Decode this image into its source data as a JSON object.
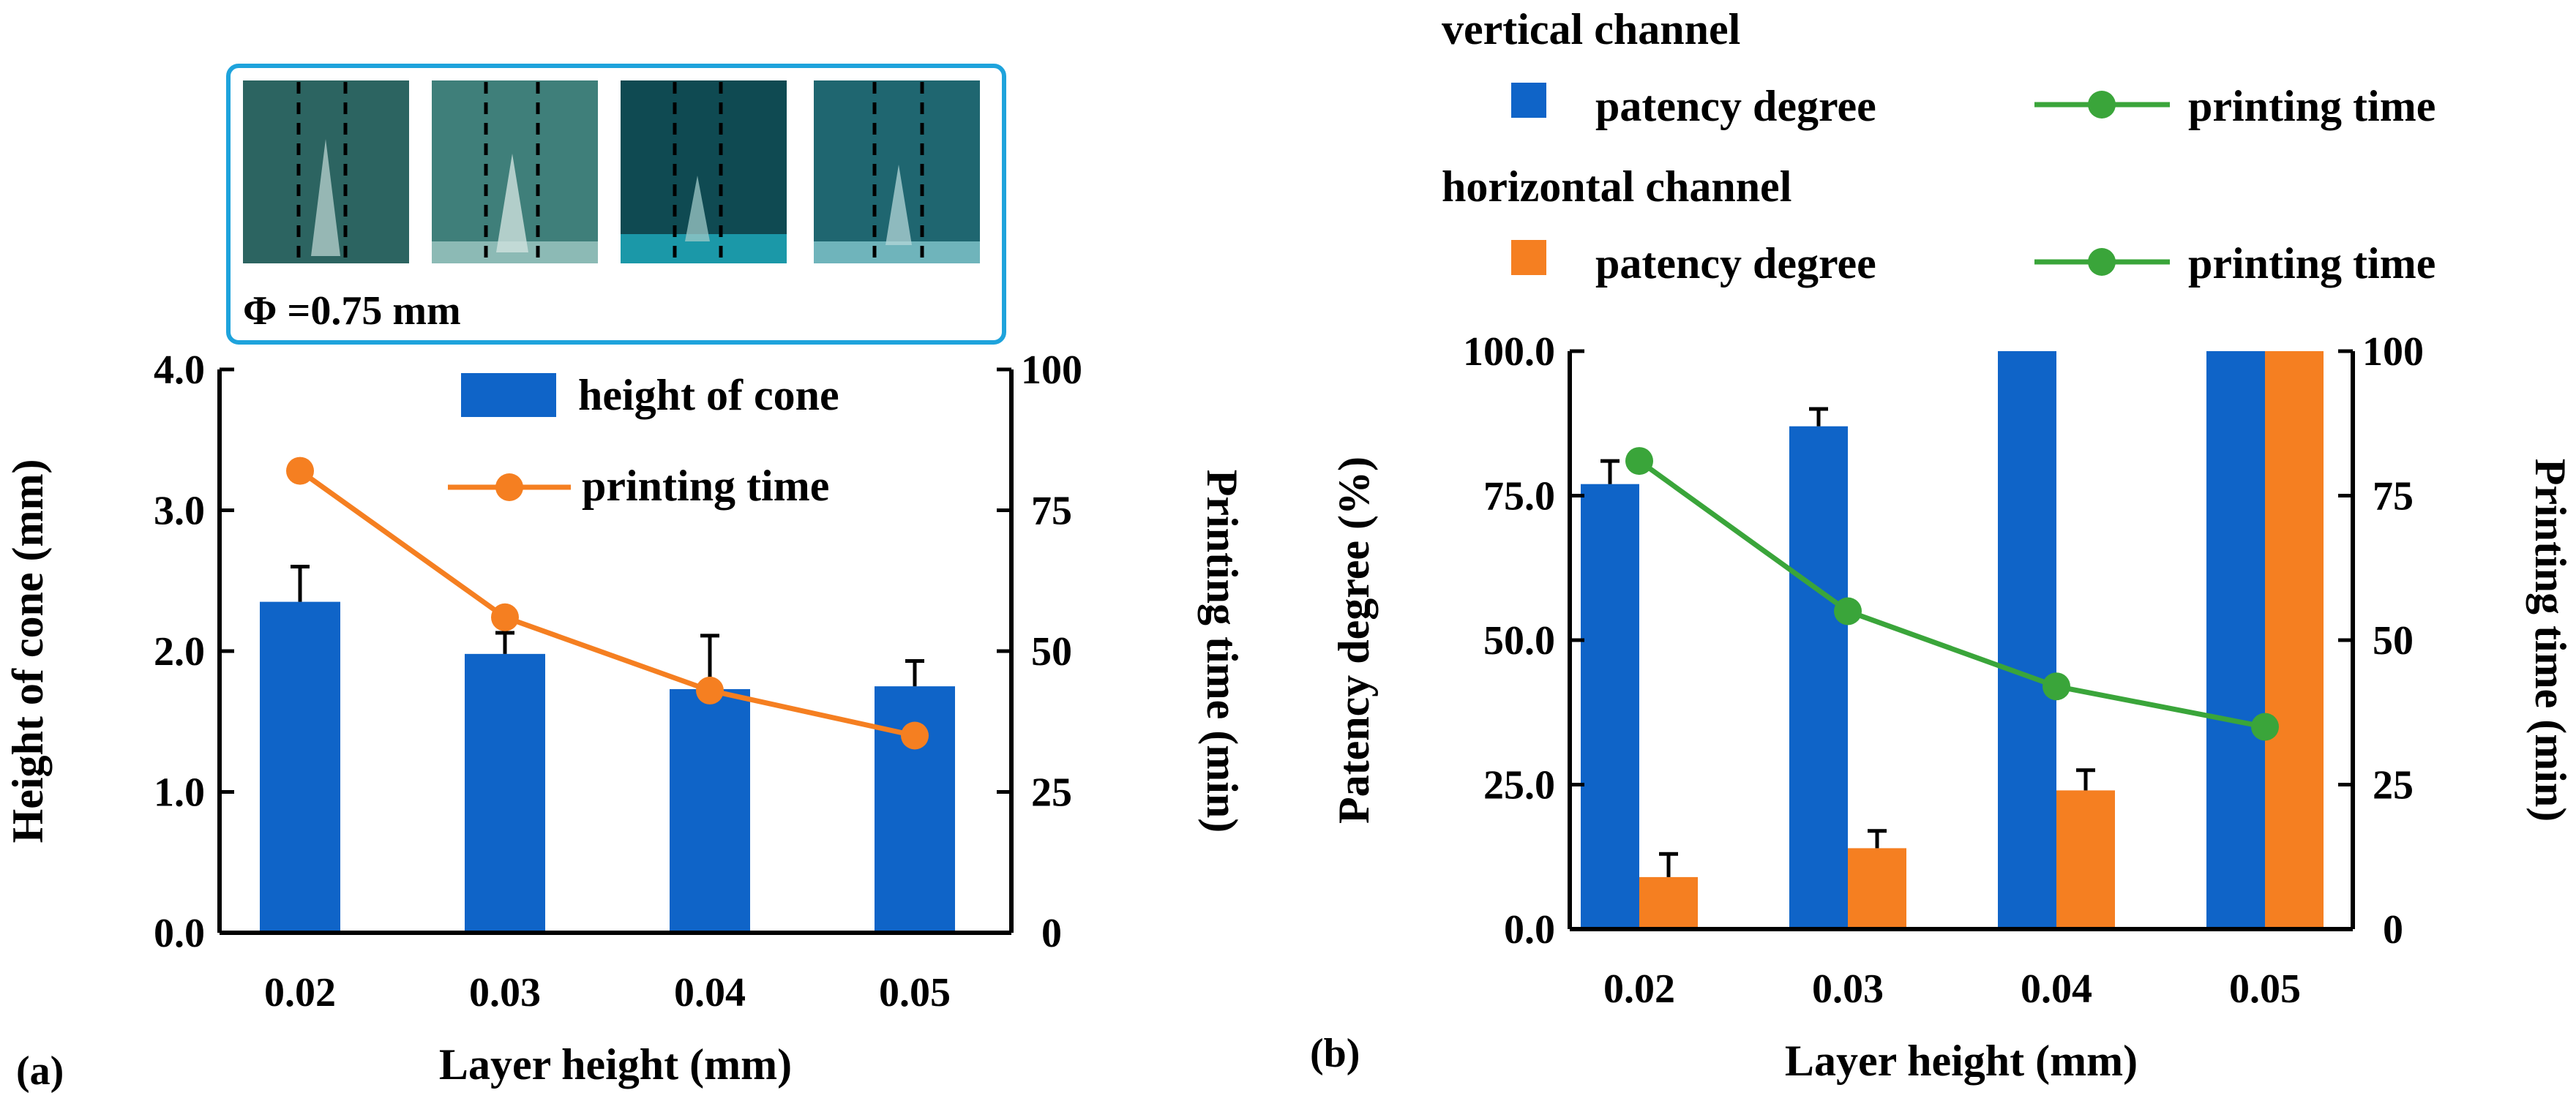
{
  "figure": {
    "panel_a_label": "(a)",
    "panel_b_label": "(b)"
  },
  "inset": {
    "label": "Φ =0.75 mm",
    "photo_icons": [
      "cone-photo-icon",
      "cone-photo-icon",
      "cone-photo-icon",
      "cone-photo-icon"
    ]
  },
  "colors": {
    "blue": "#0f64c8",
    "orange": "#f57f21",
    "green": "#3aa53a",
    "inset_border": "#1ea3dc"
  },
  "chart_data": [
    {
      "id": "a",
      "type": "bar",
      "categories": [
        "0.02",
        "0.03",
        "0.04",
        "0.05"
      ],
      "series": [
        {
          "name": "height of cone",
          "kind": "bar",
          "axis": "left",
          "color": "#0f64c8",
          "values": [
            2.35,
            1.98,
            1.73,
            1.75
          ],
          "errors": [
            0.25,
            0.15,
            0.38,
            0.18
          ]
        },
        {
          "name": "printing time",
          "kind": "line",
          "axis": "right",
          "color": "#f57f21",
          "values": [
            82,
            56,
            43,
            35
          ]
        }
      ],
      "xlabel": "Layer height (mm)",
      "ylabel": "Height of cone (mm)",
      "y2label": "Printing time (min)",
      "ylim": [
        0,
        4
      ],
      "y2lim": [
        0,
        100
      ],
      "yticks": [
        "0.0",
        "1.0",
        "2.0",
        "3.0",
        "4.0"
      ],
      "y2ticks": [
        "0",
        "25",
        "50",
        "75",
        "100"
      ],
      "legend": {
        "position": "top-right"
      }
    },
    {
      "id": "b",
      "type": "bar",
      "categories": [
        "0.02",
        "0.03",
        "0.04",
        "0.05"
      ],
      "series": [
        {
          "name": "patency degree",
          "group": "vertical channel",
          "kind": "bar",
          "axis": "left",
          "color": "#0f64c8",
          "values": [
            77,
            87,
            100,
            100
          ],
          "errors": [
            4,
            3,
            0,
            0
          ]
        },
        {
          "name": "patency degree",
          "group": "horizontal channel",
          "kind": "bar",
          "axis": "left",
          "color": "#f57f21",
          "values": [
            9,
            14,
            24,
            100
          ],
          "errors": [
            4,
            3,
            3.5,
            0
          ]
        },
        {
          "name": "printing time",
          "kind": "line",
          "axis": "right",
          "color": "#3aa53a",
          "values": [
            81,
            55,
            42,
            35
          ]
        }
      ],
      "xlabel": "Layer height (mm)",
      "ylabel": "Patency degree (%)",
      "y2label": "Printing time (min)",
      "ylim": [
        0,
        100
      ],
      "y2lim": [
        0,
        100
      ],
      "yticks": [
        "0.0",
        "25.0",
        "50.0",
        "75.0",
        "100.0"
      ],
      "y2ticks": [
        "0",
        "25",
        "50",
        "75",
        "100"
      ],
      "legend": {
        "position": "above-plot",
        "groups": [
          {
            "title": "vertical channel",
            "bar_label": "patency degree",
            "line_label": "printing time"
          },
          {
            "title": "horizontal channel",
            "bar_label": "patency degree",
            "line_label": "printing time"
          }
        ]
      }
    }
  ]
}
